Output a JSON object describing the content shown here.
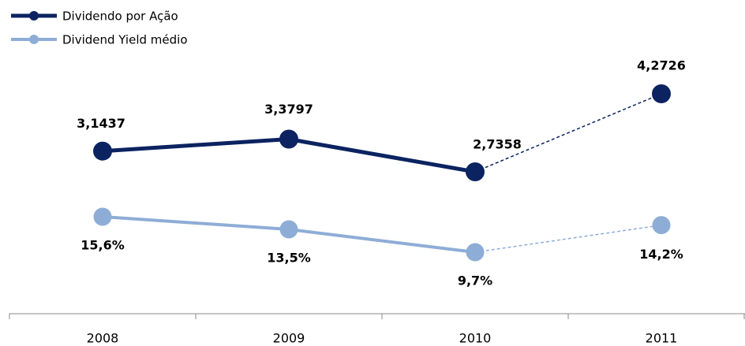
{
  "chart_data": {
    "type": "line",
    "categories": [
      "2008",
      "2009",
      "2010",
      "2011"
    ],
    "series": [
      {
        "name": "Dividendo por Ação",
        "color": "#0b2360",
        "values": [
          3.1437,
          3.3797,
          2.7358,
          4.2726
        ],
        "value_labels": [
          "3,1437",
          "3,3797",
          "2,7358",
          "4,2726"
        ]
      },
      {
        "name": "Dividend Yield médio",
        "color": "#8eadd6",
        "values": [
          15.6,
          13.5,
          9.7,
          14.2
        ],
        "value_labels": [
          "15,6%",
          "13,5%",
          "9,7%",
          "14,2%"
        ]
      }
    ],
    "legend": "top-left"
  }
}
